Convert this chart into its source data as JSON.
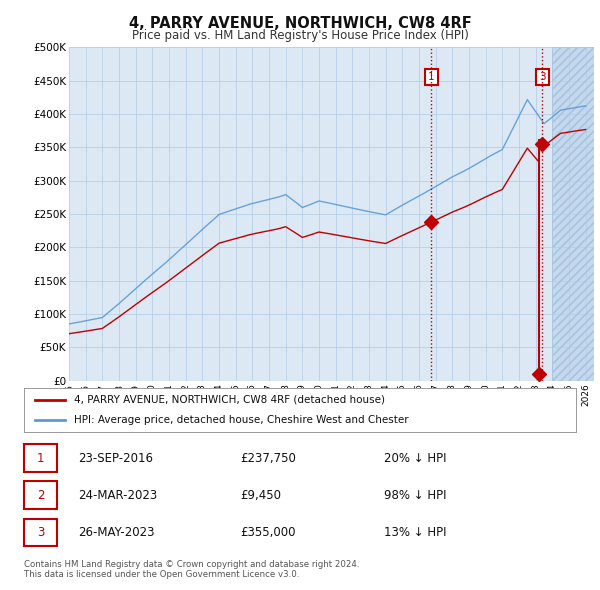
{
  "title": "4, PARRY AVENUE, NORTHWICH, CW8 4RF",
  "subtitle": "Price paid vs. HM Land Registry's House Price Index (HPI)",
  "ylim": [
    0,
    500000
  ],
  "yticks": [
    0,
    50000,
    100000,
    150000,
    200000,
    250000,
    300000,
    350000,
    400000,
    450000,
    500000
  ],
  "ytick_labels": [
    "£0",
    "£50K",
    "£100K",
    "£150K",
    "£200K",
    "£250K",
    "£300K",
    "£350K",
    "£400K",
    "£450K",
    "£500K"
  ],
  "hpi_color": "#5b9bd5",
  "price_color": "#c00000",
  "vline_color": "#c00000",
  "annotation_box_color": "#c00000",
  "legend_line1": "4, PARRY AVENUE, NORTHWICH, CW8 4RF (detached house)",
  "legend_line2": "HPI: Average price, detached house, Cheshire West and Chester",
  "table_row1": [
    "1",
    "23-SEP-2016",
    "£237,750",
    "20% ↓ HPI"
  ],
  "table_row2": [
    "2",
    "24-MAR-2023",
    "£9,450",
    "98% ↓ HPI"
  ],
  "table_row3": [
    "3",
    "26-MAY-2023",
    "£355,000",
    "13% ↓ HPI"
  ],
  "footnote": "Contains HM Land Registry data © Crown copyright and database right 2024.\nThis data is licensed under the Open Government Licence v3.0.",
  "background_color": "#ffffff",
  "chart_bg_color": "#dce9f5",
  "grid_color": "#b8cfe8",
  "hatch_color": "#c5d9ee",
  "xlim_left": 1995,
  "xlim_right": 2026.5,
  "transaction_1_date": 2016.73,
  "transaction_1_price": 237750,
  "transaction_2_date": 2023.23,
  "transaction_2_price": 9450,
  "transaction_3_date": 2023.4,
  "transaction_3_price": 355000
}
